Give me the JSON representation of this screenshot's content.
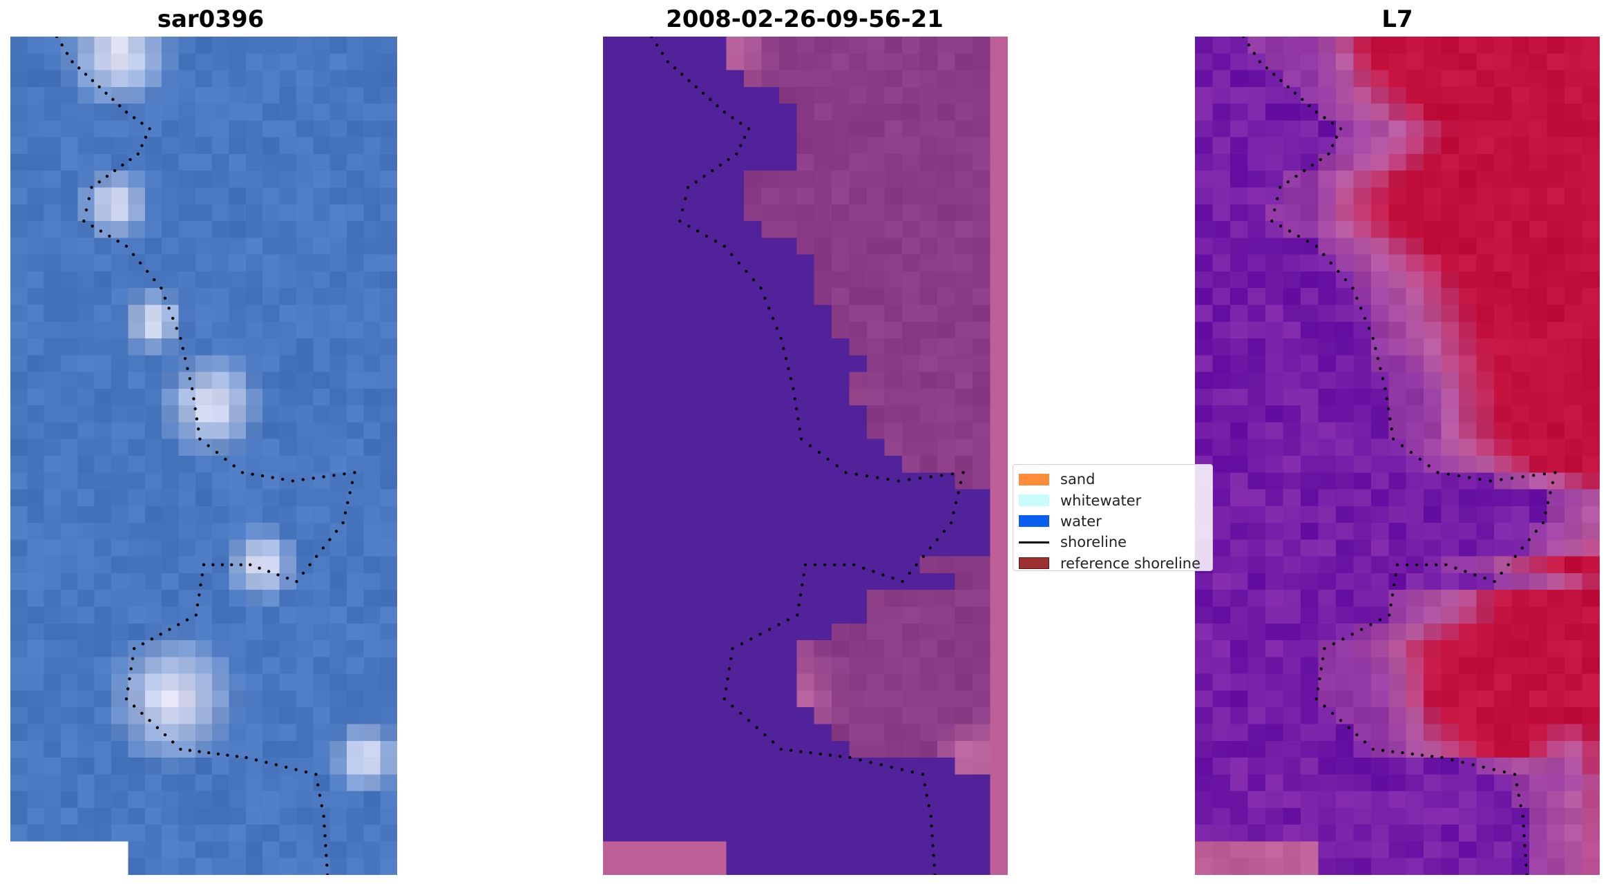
{
  "panels": [
    {
      "title": "sar0396",
      "kind": "rgb"
    },
    {
      "title": "2008-02-26-09-56-21",
      "kind": "classified"
    },
    {
      "title": "L7",
      "kind": "index"
    }
  ],
  "legend": {
    "items": [
      {
        "label": "sand",
        "color": "#ff8c3a",
        "type": "patch"
      },
      {
        "label": "whitewater",
        "color": "#c8fdfb",
        "type": "patch"
      },
      {
        "label": "water",
        "color": "#0a5ff0",
        "type": "patch"
      },
      {
        "label": "shoreline",
        "color": "#000000",
        "type": "line"
      },
      {
        "label": "reference shoreline",
        "color": "#9c3030",
        "type": "patch"
      }
    ]
  },
  "colors": {
    "rgb_water": "#4a78c0",
    "rgb_foam": "#e8e8f8",
    "class_water": "#51229a",
    "class_land": "#8a3c86",
    "class_bright": "#c06aa4",
    "index_low": "#6a14a8",
    "index_mid": "#b85aa0",
    "index_high": "#c4103c",
    "nodata": "#bf5f98",
    "shoreline_dots": "#000000"
  }
}
